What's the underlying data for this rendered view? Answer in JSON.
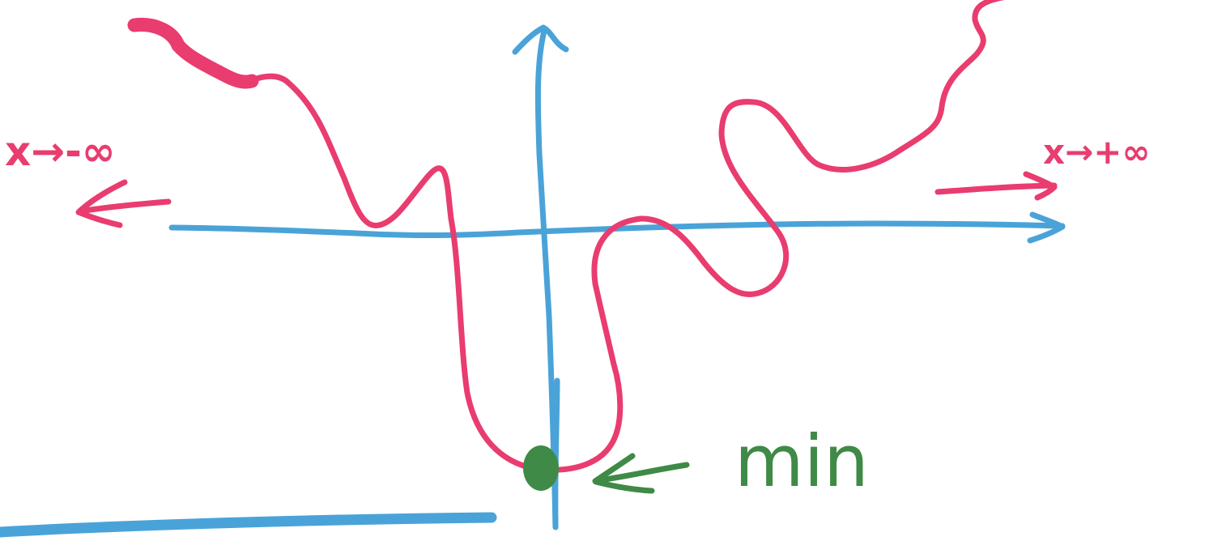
{
  "labels": {
    "left_limit": "x→-∞",
    "right_limit": "x→+∞",
    "minimum": "min"
  },
  "colors": {
    "axis": "#4aa3d8",
    "curve": "#e93c6f",
    "minimum": "#3f8a46"
  }
}
